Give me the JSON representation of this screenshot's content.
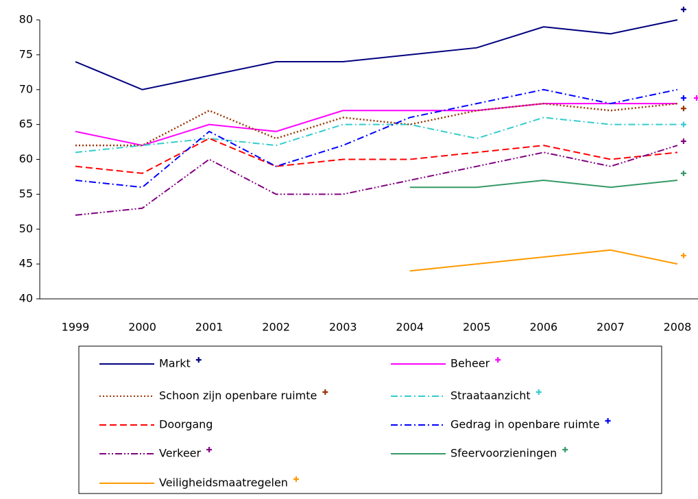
{
  "chart_data": {
    "type": "line",
    "categories": [
      "1999",
      "2000",
      "2001",
      "2002",
      "2003",
      "2004",
      "2005",
      "2006",
      "2007",
      "2008"
    ],
    "ylim": [
      40,
      80
    ],
    "yticks": [
      40,
      45,
      50,
      55,
      60,
      65,
      70,
      75,
      80
    ],
    "series": [
      {
        "name": "Markt",
        "color": "#000080",
        "dash": "none",
        "values": [
          74,
          70,
          72,
          74,
          74,
          75,
          76,
          79,
          78,
          80
        ],
        "target": 81.5
      },
      {
        "name": "Beheer",
        "color": "#ff00ff",
        "dash": "none",
        "values": [
          64,
          62,
          65,
          64,
          67,
          67,
          67,
          68,
          68,
          68
        ],
        "target": 68.8
      },
      {
        "name": "Schoon zijn openbare ruimte",
        "color": "#993300",
        "dash": "2,3",
        "values": [
          62,
          62,
          67,
          63,
          66,
          65,
          67,
          68,
          67,
          68
        ],
        "target": 67.3
      },
      {
        "name": "Straataanzicht",
        "color": "#33cccc",
        "dash": "10,4,2,4",
        "values": [
          61,
          62,
          63,
          62,
          65,
          65,
          63,
          66,
          65,
          65
        ],
        "target": 65
      },
      {
        "name": "Doorgang",
        "color": "#ff0000",
        "dash": "10,5",
        "values": [
          59,
          58,
          63,
          59,
          60,
          60,
          61,
          62,
          60,
          61
        ],
        "target": null
      },
      {
        "name": "Gedrag in openbare ruimte",
        "color": "#0000ff",
        "dash": "10,4,2,4",
        "values": [
          57,
          56,
          64,
          59,
          62,
          66,
          68,
          70,
          68,
          70
        ],
        "target": 68.8
      },
      {
        "name": "Verkeer",
        "color": "#800080",
        "dash": "10,3,2,3,2,3",
        "values": [
          52,
          53,
          60,
          55,
          55,
          57,
          59,
          61,
          59,
          62
        ],
        "target": 62.6
      },
      {
        "name": "Sfeervoorzieningen",
        "color": "#339966",
        "dash": "none",
        "values": [
          null,
          null,
          null,
          null,
          null,
          56,
          56,
          57,
          56,
          57
        ],
        "target": 58
      },
      {
        "name": "Veiligheidsmaatregelen",
        "color": "#ff9900",
        "dash": "none",
        "values": [
          null,
          null,
          null,
          null,
          null,
          44,
          45,
          46,
          47,
          45
        ],
        "target": 46.2
      }
    ]
  }
}
